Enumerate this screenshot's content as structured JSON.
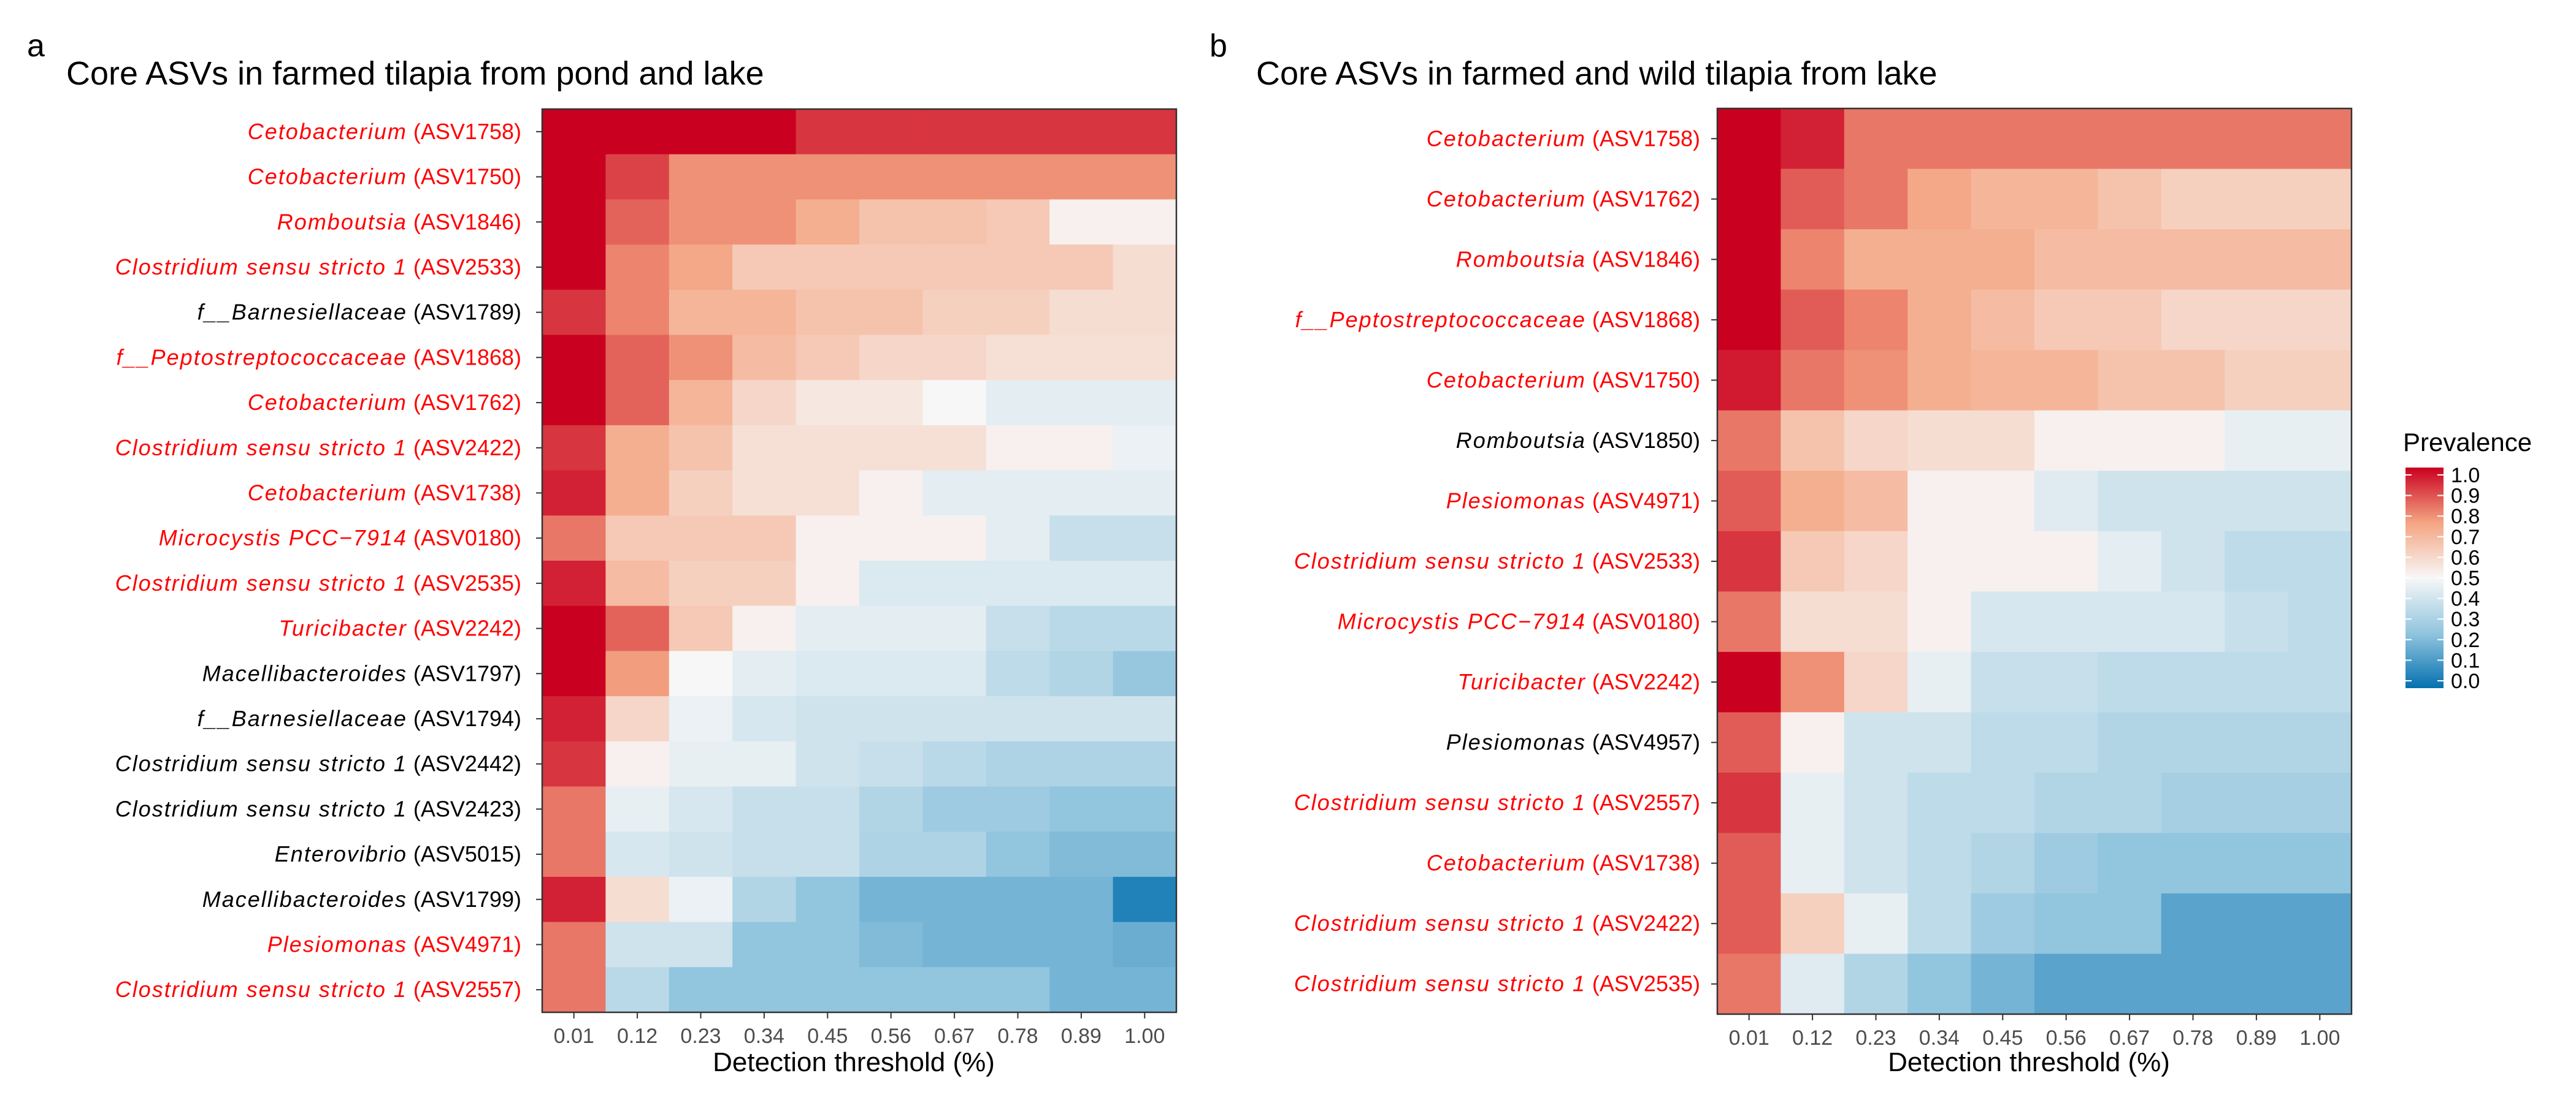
{
  "figure": {
    "legend": {
      "title": "Prevalence",
      "ticks": [
        "1.0",
        "0.9",
        "0.8",
        "0.7",
        "0.6",
        "0.5",
        "0.4",
        "0.3",
        "0.2",
        "0.1",
        "0.0"
      ]
    },
    "colors": {
      "high": "#ca0020",
      "mid": "#f7f7f7",
      "low": "#0571b0",
      "highlight_label": "#ff0000",
      "normal_label": "#000000"
    }
  },
  "chart_data": [
    {
      "type": "heatmap",
      "panel": "a",
      "title": "Core ASVs in farmed tilapia from pond and lake",
      "xlabel": "Detection threshold (%)",
      "x": [
        "0.01",
        "0.12",
        "0.23",
        "0.34",
        "0.45",
        "0.56",
        "0.67",
        "0.78",
        "0.89",
        "1.00"
      ],
      "rows": [
        {
          "genus": "Cetobacterium",
          "asv": "(ASV1758)",
          "highlight": true,
          "values": [
            1.0,
            1.0,
            1.0,
            1.0,
            0.92,
            0.92,
            0.92,
            0.92,
            0.92,
            0.92
          ]
        },
        {
          "genus": "Cetobacterium",
          "asv": "(ASV1750)",
          "highlight": true,
          "values": [
            1.0,
            0.9,
            0.78,
            0.78,
            0.78,
            0.78,
            0.78,
            0.78,
            0.78,
            0.78
          ]
        },
        {
          "genus": "Romboutsia",
          "asv": "(ASV1846)",
          "highlight": true,
          "values": [
            1.0,
            0.85,
            0.78,
            0.78,
            0.72,
            0.66,
            0.66,
            0.64,
            0.52,
            0.52
          ]
        },
        {
          "genus": "Clostridium sensu stricto 1",
          "asv": "(ASV2533)",
          "highlight": true,
          "values": [
            1.0,
            0.8,
            0.74,
            0.64,
            0.64,
            0.64,
            0.64,
            0.64,
            0.64,
            0.58
          ]
        },
        {
          "genus": "f__Barnesiellaceae",
          "asv": "(ASV1789)",
          "highlight": false,
          "values": [
            0.92,
            0.8,
            0.7,
            0.7,
            0.66,
            0.66,
            0.62,
            0.62,
            0.58,
            0.58
          ]
        },
        {
          "genus": "f__Peptostreptococcaceae",
          "asv": "(ASV1868)",
          "highlight": true,
          "values": [
            1.0,
            0.85,
            0.78,
            0.68,
            0.64,
            0.6,
            0.6,
            0.57,
            0.57,
            0.57
          ]
        },
        {
          "genus": "Cetobacterium",
          "asv": "(ASV1762)",
          "highlight": true,
          "values": [
            1.0,
            0.85,
            0.7,
            0.6,
            0.55,
            0.55,
            0.5,
            0.45,
            0.45,
            0.45
          ]
        },
        {
          "genus": "Clostridium sensu stricto 1",
          "asv": "(ASV2422)",
          "highlight": true,
          "values": [
            0.92,
            0.72,
            0.66,
            0.57,
            0.57,
            0.57,
            0.57,
            0.52,
            0.52,
            0.47
          ]
        },
        {
          "genus": "Cetobacterium",
          "asv": "(ASV1738)",
          "highlight": true,
          "values": [
            0.95,
            0.72,
            0.62,
            0.57,
            0.57,
            0.52,
            0.45,
            0.45,
            0.45,
            0.45
          ]
        },
        {
          "genus": "Microcystis PCC−7914",
          "asv": "(ASV0180)",
          "highlight": true,
          "values": [
            0.82,
            0.64,
            0.64,
            0.64,
            0.52,
            0.52,
            0.52,
            0.45,
            0.38,
            0.38
          ]
        },
        {
          "genus": "Clostridium sensu stricto 1",
          "asv": "(ASV2535)",
          "highlight": true,
          "values": [
            0.95,
            0.68,
            0.62,
            0.62,
            0.52,
            0.43,
            0.43,
            0.43,
            0.43,
            0.43
          ]
        },
        {
          "genus": "Turicibacter",
          "asv": "(ASV2242)",
          "highlight": true,
          "values": [
            1.0,
            0.85,
            0.64,
            0.52,
            0.45,
            0.45,
            0.45,
            0.38,
            0.35,
            0.35
          ]
        },
        {
          "genus": "Macellibacteroides",
          "asv": "(ASV1797)",
          "highlight": false,
          "values": [
            1.0,
            0.76,
            0.5,
            0.45,
            0.43,
            0.43,
            0.43,
            0.36,
            0.33,
            0.26
          ]
        },
        {
          "genus": "f__Barnesiellaceae",
          "asv": "(ASV1794)",
          "highlight": false,
          "values": [
            0.95,
            0.6,
            0.47,
            0.42,
            0.4,
            0.4,
            0.4,
            0.4,
            0.4,
            0.4
          ]
        },
        {
          "genus": "Clostridium sensu stricto 1",
          "asv": "(ASV2442)",
          "highlight": false,
          "values": [
            0.92,
            0.52,
            0.46,
            0.46,
            0.4,
            0.38,
            0.35,
            0.32,
            0.32,
            0.32
          ]
        },
        {
          "genus": "Clostridium sensu stricto 1",
          "asv": "(ASV2423)",
          "highlight": false,
          "values": [
            0.82,
            0.46,
            0.42,
            0.38,
            0.38,
            0.33,
            0.28,
            0.28,
            0.25,
            0.25
          ]
        },
        {
          "genus": "Enterovibrio",
          "asv": "(ASV5015)",
          "highlight": false,
          "values": [
            0.82,
            0.42,
            0.4,
            0.38,
            0.38,
            0.32,
            0.32,
            0.25,
            0.22,
            0.22
          ]
        },
        {
          "genus": "Macellibacteroides",
          "asv": "(ASV1799)",
          "highlight": false,
          "values": [
            0.95,
            0.58,
            0.47,
            0.33,
            0.25,
            0.2,
            0.2,
            0.2,
            0.2,
            0.05
          ]
        },
        {
          "genus": "Plesiomonas",
          "asv": "(ASV4971)",
          "highlight": true,
          "values": [
            0.82,
            0.4,
            0.4,
            0.25,
            0.25,
            0.22,
            0.2,
            0.2,
            0.2,
            0.18
          ]
        },
        {
          "genus": "Clostridium sensu stricto 1",
          "asv": "(ASV2557)",
          "highlight": true,
          "values": [
            0.82,
            0.35,
            0.25,
            0.25,
            0.25,
            0.25,
            0.25,
            0.25,
            0.2,
            0.2
          ]
        }
      ]
    },
    {
      "type": "heatmap",
      "panel": "b",
      "title": "Core ASVs in farmed and wild tilapia from lake",
      "xlabel": "Detection threshold (%)",
      "x": [
        "0.01",
        "0.12",
        "0.23",
        "0.34",
        "0.45",
        "0.56",
        "0.67",
        "0.78",
        "0.89",
        "1.00"
      ],
      "rows": [
        {
          "genus": "Cetobacterium",
          "asv": "(ASV1758)",
          "highlight": true,
          "values": [
            1.0,
            0.95,
            0.82,
            0.82,
            0.82,
            0.82,
            0.82,
            0.82,
            0.82,
            0.82
          ]
        },
        {
          "genus": "Cetobacterium",
          "asv": "(ASV1762)",
          "highlight": true,
          "values": [
            1.0,
            0.86,
            0.82,
            0.74,
            0.7,
            0.7,
            0.66,
            0.62,
            0.62,
            0.62
          ]
        },
        {
          "genus": "Romboutsia",
          "asv": "(ASV1846)",
          "highlight": true,
          "values": [
            1.0,
            0.8,
            0.72,
            0.72,
            0.72,
            0.68,
            0.68,
            0.68,
            0.68,
            0.68
          ]
        },
        {
          "genus": "f__Peptostreptococcaceae",
          "asv": "(ASV1868)",
          "highlight": true,
          "values": [
            1.0,
            0.86,
            0.8,
            0.72,
            0.68,
            0.64,
            0.64,
            0.6,
            0.6,
            0.6
          ]
        },
        {
          "genus": "Cetobacterium",
          "asv": "(ASV1750)",
          "highlight": true,
          "values": [
            0.96,
            0.82,
            0.78,
            0.72,
            0.7,
            0.7,
            0.66,
            0.66,
            0.62,
            0.62
          ]
        },
        {
          "genus": "Romboutsia",
          "asv": "(ASV1850)",
          "highlight": false,
          "values": [
            0.82,
            0.66,
            0.6,
            0.58,
            0.58,
            0.52,
            0.52,
            0.52,
            0.46,
            0.46
          ]
        },
        {
          "genus": "Plesiomonas",
          "asv": "(ASV4971)",
          "highlight": true,
          "values": [
            0.86,
            0.72,
            0.68,
            0.52,
            0.52,
            0.44,
            0.4,
            0.4,
            0.4,
            0.4
          ]
        },
        {
          "genus": "Clostridium sensu stricto 1",
          "asv": "(ASV2533)",
          "highlight": true,
          "values": [
            0.92,
            0.64,
            0.6,
            0.52,
            0.52,
            0.52,
            0.45,
            0.4,
            0.36,
            0.36
          ]
        },
        {
          "genus": "Microcystis PCC−7914",
          "asv": "(ASV0180)",
          "highlight": true,
          "values": [
            0.82,
            0.58,
            0.58,
            0.52,
            0.42,
            0.42,
            0.42,
            0.42,
            0.38,
            0.36
          ]
        },
        {
          "genus": "Turicibacter",
          "asv": "(ASV2242)",
          "highlight": true,
          "values": [
            1.0,
            0.78,
            0.6,
            0.46,
            0.38,
            0.38,
            0.36,
            0.36,
            0.36,
            0.36
          ]
        },
        {
          "genus": "Plesiomonas",
          "asv": "(ASV4957)",
          "highlight": false,
          "values": [
            0.86,
            0.52,
            0.4,
            0.4,
            0.36,
            0.36,
            0.33,
            0.33,
            0.33,
            0.33
          ]
        },
        {
          "genus": "Clostridium sensu stricto 1",
          "asv": "(ASV2557)",
          "highlight": true,
          "values": [
            0.92,
            0.46,
            0.4,
            0.36,
            0.36,
            0.33,
            0.33,
            0.3,
            0.3,
            0.3
          ]
        },
        {
          "genus": "Cetobacterium",
          "asv": "(ASV1738)",
          "highlight": true,
          "values": [
            0.86,
            0.46,
            0.4,
            0.36,
            0.33,
            0.28,
            0.25,
            0.25,
            0.25,
            0.25
          ]
        },
        {
          "genus": "Clostridium sensu stricto 1",
          "asv": "(ASV2422)",
          "highlight": true,
          "values": [
            0.86,
            0.62,
            0.46,
            0.36,
            0.28,
            0.25,
            0.25,
            0.15,
            0.15,
            0.15
          ]
        },
        {
          "genus": "Clostridium sensu stricto 1",
          "asv": "(ASV2535)",
          "highlight": true,
          "values": [
            0.82,
            0.44,
            0.33,
            0.25,
            0.2,
            0.15,
            0.15,
            0.15,
            0.15,
            0.15
          ]
        }
      ]
    }
  ]
}
